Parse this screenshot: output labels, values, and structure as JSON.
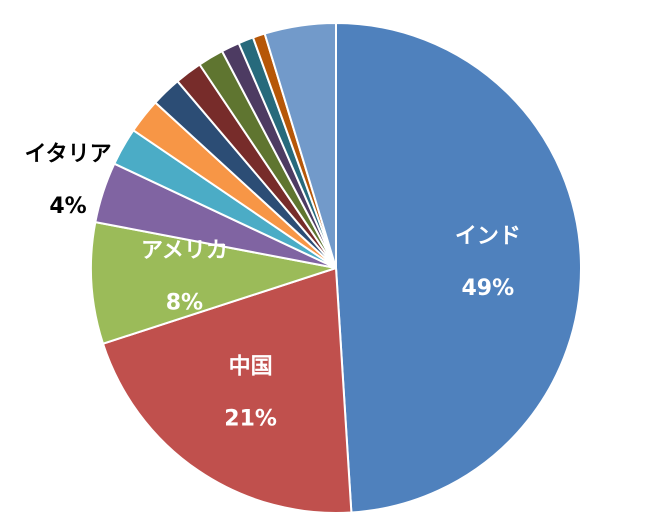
{
  "chart_data": {
    "type": "pie",
    "categories": [
      "インド",
      "中国",
      "アメリカ",
      "イタリア",
      null,
      null,
      null,
      null,
      null,
      null,
      null,
      null,
      null
    ],
    "values": [
      49,
      21,
      8,
      4,
      2.5,
      2.3,
      2.0,
      1.8,
      1.7,
      1.2,
      1.0,
      0.8,
      4.7
    ],
    "value_labels": [
      "49%",
      "21%",
      "8%",
      "4%",
      null,
      null,
      null,
      null,
      null,
      null,
      null,
      null,
      null
    ],
    "colors": [
      "#4f81bd",
      "#c0504d",
      "#9bbb59",
      "#8064a2",
      "#4bacc6",
      "#f79646",
      "#2c4d75",
      "#772c2a",
      "#5f7530",
      "#4d3b62",
      "#276a7c",
      "#b65708",
      "#729aca"
    ]
  }
}
